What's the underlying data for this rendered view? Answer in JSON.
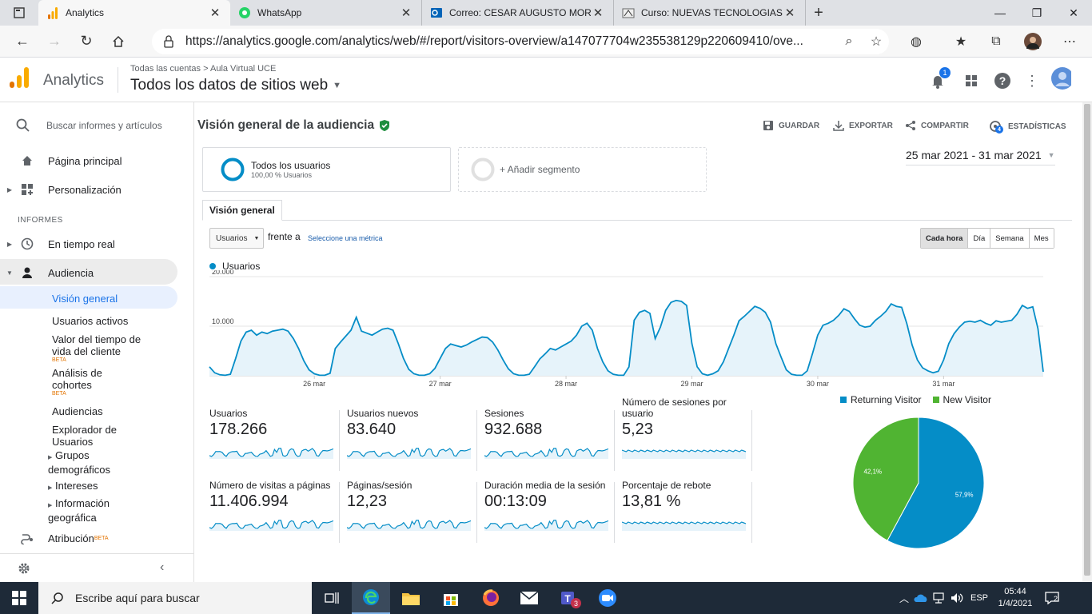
{
  "browser": {
    "tabs": [
      {
        "label": "Analytics",
        "icon": "analytics-icon",
        "active": true
      },
      {
        "label": "WhatsApp",
        "icon": "whatsapp-icon"
      },
      {
        "label": "Correo: CESAR AUGUSTO MORA",
        "icon": "outlook-icon"
      },
      {
        "label": "Curso: NUEVAS TECNOLOGIAS E",
        "icon": "moodle-icon"
      }
    ],
    "url": "https://analytics.google.com/analytics/web/#/report/visitors-overview/a147077704w235538129p220609410/ove..."
  },
  "header": {
    "brand": "Analytics",
    "breadcrumb": "Todas las cuentas > Aula Virtual UCE",
    "account": "Todos los datos de sitios web",
    "notification_count": "1"
  },
  "sidebar": {
    "search_placeholder": "Buscar informes y artículos",
    "home": "Página principal",
    "custom": "Personalización",
    "section": "INFORMES",
    "realtime": "En tiempo real",
    "audience": "Audiencia",
    "overview": "Visión general",
    "active_users": "Usuarios activos",
    "lifetime": "Valor del tiempo de vida del cliente",
    "cohorts": "Análisis de cohortes",
    "audiences": "Audiencias",
    "explorer": "Explorador de Usuarios",
    "demographics": "Grupos demográficos",
    "interests": "Intereses",
    "geo": "Información geográfica",
    "attribution": "Atribución",
    "beta": "BETA"
  },
  "report": {
    "title": "Visión general de la audiencia",
    "actions": {
      "save": "GUARDAR",
      "export": "EXPORTAR",
      "share": "COMPARTIR",
      "insights": "ESTADÍSTICAS",
      "insights_count": "4"
    },
    "segment": {
      "name": "Todos los usuarios",
      "pct": "100,00 % Usuarios"
    },
    "add_segment": "+ Añadir segmento",
    "date_range": "25 mar 2021 - 31 mar 2021",
    "tab": "Visión general",
    "metric_select": "Usuarios",
    "versus": "frente a",
    "pick_metric": "Seleccione una métrica",
    "granularity": [
      "Cada hora",
      "Día",
      "Semana",
      "Mes"
    ],
    "series_name": "Usuarios"
  },
  "chart_data": [
    {
      "type": "area",
      "series": [
        {
          "name": "Usuarios",
          "color": "#058dc7",
          "values": [
            1800,
            600,
            200,
            100,
            300,
            3500,
            7000,
            8800,
            9200,
            8200,
            8800,
            8500,
            9000,
            9200,
            9400,
            9000,
            7500,
            5500,
            3000,
            1200,
            400,
            100,
            100,
            500,
            5500,
            6800,
            8000,
            9200,
            11800,
            9000,
            8600,
            8200,
            8800,
            9400,
            9600,
            9200,
            6500,
            3500,
            1300,
            400,
            100,
            100,
            400,
            1500,
            3500,
            5500,
            6400,
            6100,
            5800,
            6200,
            6800,
            7300,
            7800,
            7700,
            6800,
            5200,
            3200,
            1400,
            400,
            100,
            100,
            300,
            1800,
            3400,
            4400,
            5500,
            5200,
            5800,
            6400,
            7000,
            8200,
            10000,
            10600,
            9200,
            5500,
            2800,
            1000,
            300,
            100,
            100,
            1800,
            11200,
            12800,
            13200,
            12600,
            7500,
            9800,
            13200,
            14800,
            15200,
            15000,
            14200,
            6500,
            1800,
            400,
            100,
            400,
            1000,
            2800,
            5500,
            8200,
            11100,
            12000,
            13000,
            14000,
            13600,
            12800,
            10800,
            6500,
            3800,
            1200,
            300,
            100,
            100,
            1000,
            4500,
            8200,
            10200,
            10600,
            11200,
            12200,
            13500,
            13000,
            11500,
            10200,
            9800,
            10000,
            11200,
            12000,
            13000,
            14500,
            14000,
            13800,
            10500,
            6200,
            3200,
            1600,
            1000,
            600,
            900,
            3200,
            6500,
            8500,
            9800,
            10800,
            11000,
            10800,
            11200,
            10600,
            10200,
            11100,
            10800,
            11000,
            11200,
            12400,
            14200,
            13600,
            13900,
            9500,
            800
          ]
        }
      ],
      "x_ticks": [
        "26 mar",
        "27 mar",
        "28 mar",
        "29 mar",
        "30 mar",
        "31 mar"
      ],
      "y_ticks": [
        "20.000",
        "10.000"
      ],
      "ylim": [
        0,
        20000
      ]
    },
    {
      "type": "pie",
      "labels": [
        "Returning Visitor",
        "New Visitor"
      ],
      "values": [
        57.9,
        42.1
      ],
      "value_labels": [
        "57,9%",
        "42,1%"
      ],
      "colors": [
        "#058dc7",
        "#50b432"
      ],
      "legend": "top"
    }
  ],
  "metrics": [
    {
      "label": "Usuarios",
      "value": "178.266"
    },
    {
      "label": "Usuarios nuevos",
      "value": "83.640"
    },
    {
      "label": "Sesiones",
      "value": "932.688"
    },
    {
      "label": "Número de sesiones por usuario",
      "value": "5,23"
    },
    {
      "label": "Número de visitas a páginas",
      "value": "11.406.994"
    },
    {
      "label": "Páginas/sesión",
      "value": "12,23"
    },
    {
      "label": "Duración media de la sesión",
      "value": "00:13:09"
    },
    {
      "label": "Porcentaje de rebote",
      "value": "13,81 %"
    }
  ],
  "taskbar": {
    "search": "Escribe aquí para buscar",
    "teams_badge": "3",
    "lang": "ESP",
    "time": "05:44",
    "date": "1/4/2021",
    "notifications": "2"
  }
}
